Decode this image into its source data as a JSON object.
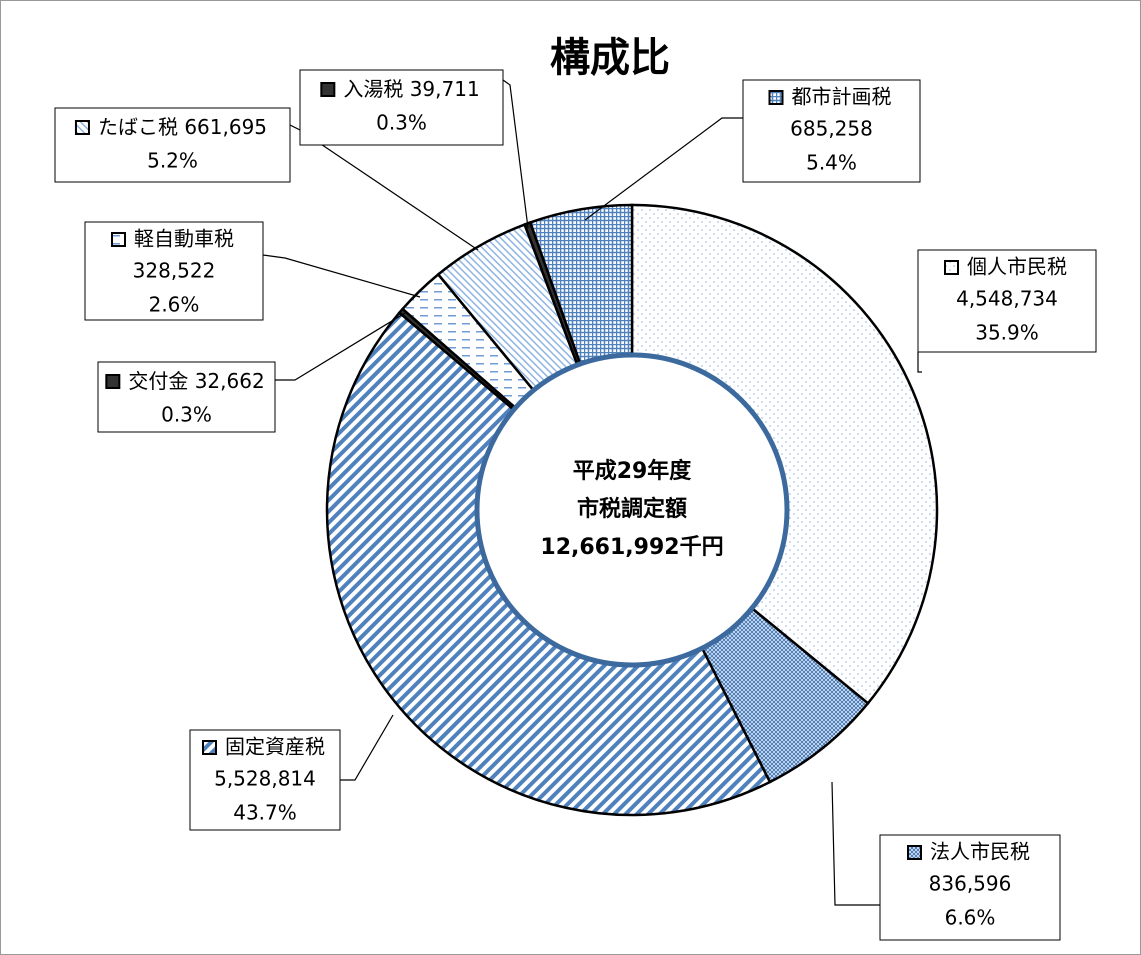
{
  "chart_data": {
    "type": "donut",
    "title": "構成比",
    "center_text": [
      "平成29年度",
      "市税調定額",
      "12,661,992千円"
    ],
    "categories": [
      "個人市民税",
      "法人市民税",
      "固定資産税",
      "交付金",
      "軽自動車税",
      "たばこ税",
      "入湯税",
      "都市計画税"
    ],
    "values": [
      4548734,
      836596,
      5528814,
      32662,
      328522,
      661695,
      39711,
      685258
    ],
    "value_labels": [
      "4,548,734",
      "836,596",
      "5,528,814",
      "32,662",
      "328,522",
      "661,695",
      "39,711",
      "685,258"
    ],
    "percents": [
      35.9,
      6.6,
      43.7,
      0.3,
      2.6,
      5.2,
      0.3,
      5.4
    ],
    "percent_labels": [
      "35.9%",
      "6.6%",
      "43.7%",
      "0.3%",
      "2.6%",
      "5.2%",
      "0.3%",
      "5.4%"
    ],
    "colors": [
      "#8fb4e3",
      "#4f81bd",
      "#4f81bd",
      "#333333",
      "#6f9bd6",
      "#8fb4e3",
      "#333333",
      "#4f81bd"
    ]
  }
}
